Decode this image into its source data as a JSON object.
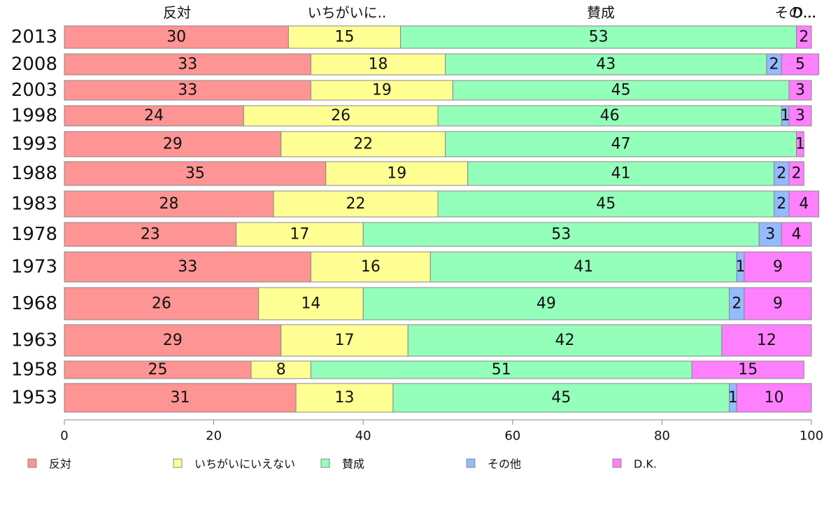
{
  "chart_data": {
    "type": "bar",
    "orientation": "horizontal",
    "stacked": true,
    "categories": [
      "2013",
      "2008",
      "2003",
      "1998",
      "1993",
      "1988",
      "1983",
      "1978",
      "1973",
      "1968",
      "1963",
      "1958",
      "1953"
    ],
    "series": [
      {
        "name": "反対",
        "color": "#ff9494",
        "values": [
          30,
          33,
          33,
          24,
          29,
          35,
          28,
          23,
          33,
          26,
          29,
          25,
          31
        ]
      },
      {
        "name": "いちがいにいえない",
        "color": "#ffff94",
        "values": [
          15,
          18,
          19,
          26,
          22,
          19,
          22,
          17,
          16,
          14,
          17,
          8,
          13
        ]
      },
      {
        "name": "賛成",
        "color": "#94ffba",
        "values": [
          53,
          43,
          45,
          46,
          47,
          41,
          45,
          53,
          41,
          49,
          42,
          51,
          45
        ]
      },
      {
        "name": "その他",
        "color": "#94baff",
        "values": [
          0,
          2,
          0,
          1,
          0,
          2,
          2,
          3,
          1,
          2,
          0,
          0,
          1
        ]
      },
      {
        "name": "D.K.",
        "color": "#ff80ff",
        "values": [
          2,
          5,
          3,
          3,
          1,
          2,
          4,
          4,
          9,
          9,
          12,
          15,
          10
        ]
      }
    ],
    "top_labels": [
      "反対",
      "いちがいに..",
      "賛成",
      "その...",
      "D..."
    ],
    "xlim": [
      0,
      100
    ],
    "xticks": [
      "0",
      "20",
      "40",
      "60",
      "80",
      "100"
    ],
    "grid": false,
    "legend_position": "bottom"
  }
}
